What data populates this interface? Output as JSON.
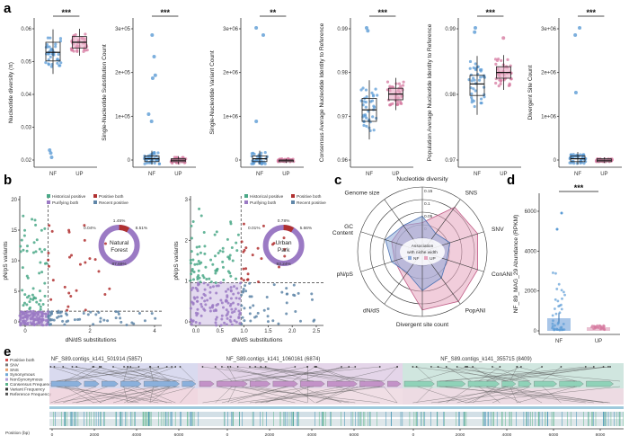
{
  "figure": {
    "panel_labels": {
      "a": "a",
      "b": "b",
      "c": "c",
      "d": "d",
      "e": "e"
    },
    "colors": {
      "NF": "#5b9bd5",
      "UP": "#d67aa0",
      "NF_box": "#2e6fb0",
      "UP_box": "#b03a6a",
      "b_green": "#4aa887",
      "b_red": "#b03030",
      "b_blue": "#5f86a8",
      "b_purple": "#9b7ac4"
    }
  },
  "panel_a": {
    "groups": [
      "NF",
      "UP"
    ],
    "subplots": [
      {
        "ylabel": "Nucleotide diversity (π)",
        "sig": "***",
        "ticks": [
          "0.02",
          "0.03",
          "0.04",
          "0.05",
          "0.06"
        ]
      },
      {
        "ylabel": "Single-Nucleotide Substitution Count",
        "sig": "***",
        "ticks": [
          "0",
          "1e+05",
          "2e+05",
          "3e+05"
        ]
      },
      {
        "ylabel": "Single-Nucleotide Variant Count",
        "sig": "**",
        "ticks": [
          "0",
          "1e+06",
          "2e+06",
          "3e+06"
        ]
      },
      {
        "ylabel": "Consensus Average Nucleotide Identity to Reference",
        "sig": "***",
        "ticks": [
          "0.96",
          "0.97",
          "0.98",
          "0.99"
        ]
      },
      {
        "ylabel": "Population Average Nucleotide Identity to Reference",
        "sig": "***",
        "ticks": [
          "0.97",
          "0.98",
          "0.99"
        ]
      },
      {
        "ylabel": "Divergent Site Count",
        "sig": "***",
        "ticks": [
          "0",
          "1e+06",
          "2e+06",
          "3e+06"
        ]
      }
    ]
  },
  "panel_b": {
    "xlabel": "dN/dS substitutions",
    "ylabel": "pN/pS variants",
    "legend": [
      "Historical positive",
      "Positive both",
      "Purifying both",
      "Recent positive"
    ],
    "plots": [
      {
        "site": "Natural Forest",
        "yticks": [
          "0",
          "5",
          "10",
          "15",
          "20"
        ],
        "xticks": [
          "0",
          "2",
          "4"
        ],
        "pct_top": "1.45%",
        "pct_left": "0.04%",
        "pct_right": "8.51%",
        "pct_bottom": "87.69%"
      },
      {
        "site": "Urban Park",
        "yticks": [
          "0",
          "1",
          "2",
          "3"
        ],
        "xticks": [
          "0.0",
          "0.5",
          "1.0",
          "1.5",
          "2.0",
          "2.5"
        ],
        "pct_top": "0.78%",
        "pct_left": "0.01%",
        "pct_right": "5.66%",
        "pct_bottom": "93.24%"
      }
    ]
  },
  "panel_c": {
    "axes": [
      "Nucleotide diversity",
      "SNS",
      "SNV",
      "ConANI",
      "PopANI",
      "Divergent site count",
      "dN/dS",
      "pN/pS",
      "GC Content",
      "Genome size"
    ],
    "rings": [
      "0.15",
      "0.1",
      "0.05",
      "0",
      "-0.05"
    ],
    "center_title": "Association with niche width",
    "legend": [
      "NF",
      "UP"
    ]
  },
  "panel_d": {
    "ylabel": "NF_89_MAG_29 Abundance (RPKM)",
    "sig": "***",
    "groups": [
      "NF",
      "UP"
    ],
    "yticks": [
      "0",
      "2000",
      "4000",
      "6000"
    ]
  },
  "panel_e": {
    "legend": [
      "Positive both",
      "SNV",
      "SNS",
      "Synonymous",
      "NonSynonymous",
      "Consensus Frequency",
      "Variant Frequency",
      "Reference Frequency"
    ],
    "contigs": [
      "NF_S89.contigs_k141_501914 (5857)",
      "NF_S89.contigs_k141_1060161 (6874)",
      "NF_S89.contigs_k141_355715 (8409)"
    ],
    "xlabel": "Position (bp)",
    "xticks": [
      "0",
      "2000",
      "4000",
      "6000",
      "2000",
      "4000",
      "6000",
      "2000",
      "4000",
      "6000",
      "8000"
    ]
  }
}
